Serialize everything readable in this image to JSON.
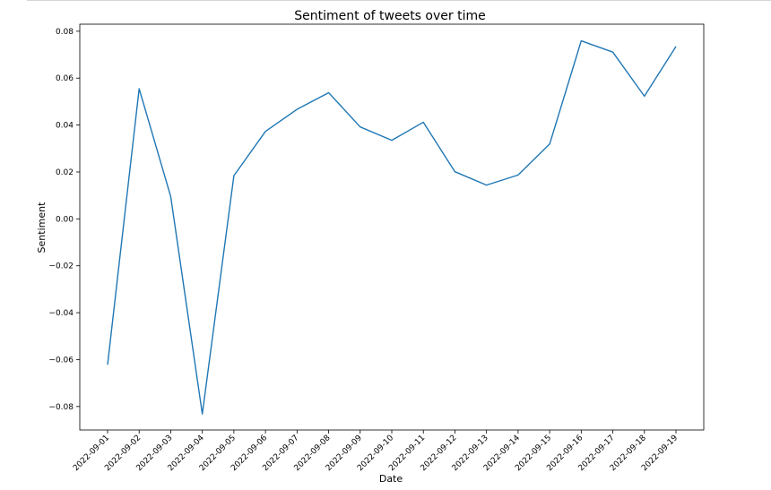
{
  "chart_data": {
    "type": "line",
    "title": "Sentiment of tweets over time",
    "xlabel": "Date",
    "ylabel": "Sentiment",
    "x": [
      "2022-09-01",
      "2022-09-02",
      "2022-09-03",
      "2022-09-04",
      "2022-09-05",
      "2022-09-06",
      "2022-09-07",
      "2022-09-08",
      "2022-09-09",
      "2022-09-10",
      "2022-09-11",
      "2022-09-12",
      "2022-09-13",
      "2022-09-14",
      "2022-09-15",
      "2022-09-16",
      "2022-09-17",
      "2022-09-18",
      "2022-09-19"
    ],
    "series": [
      {
        "values": [
          -0.0622,
          0.0555,
          0.0095,
          -0.0832,
          0.0184,
          0.0373,
          0.0467,
          0.0538,
          0.0392,
          0.0335,
          0.0412,
          0.0201,
          0.0144,
          0.0187,
          0.0319,
          0.0759,
          0.0711,
          0.0523,
          0.0735
        ],
        "color": "#1f77b4"
      }
    ],
    "yticks": [
      "0.08",
      "0.06",
      "0.04",
      "0.02",
      "0.00",
      "−0.02",
      "−0.04",
      "−0.06",
      "−0.08"
    ],
    "ytick_values": [
      0.08,
      0.06,
      0.04,
      0.02,
      0.0,
      -0.02,
      -0.04,
      -0.06,
      -0.08
    ],
    "ylim": [
      -0.09,
      0.083
    ],
    "grid": false,
    "legend": false
  }
}
